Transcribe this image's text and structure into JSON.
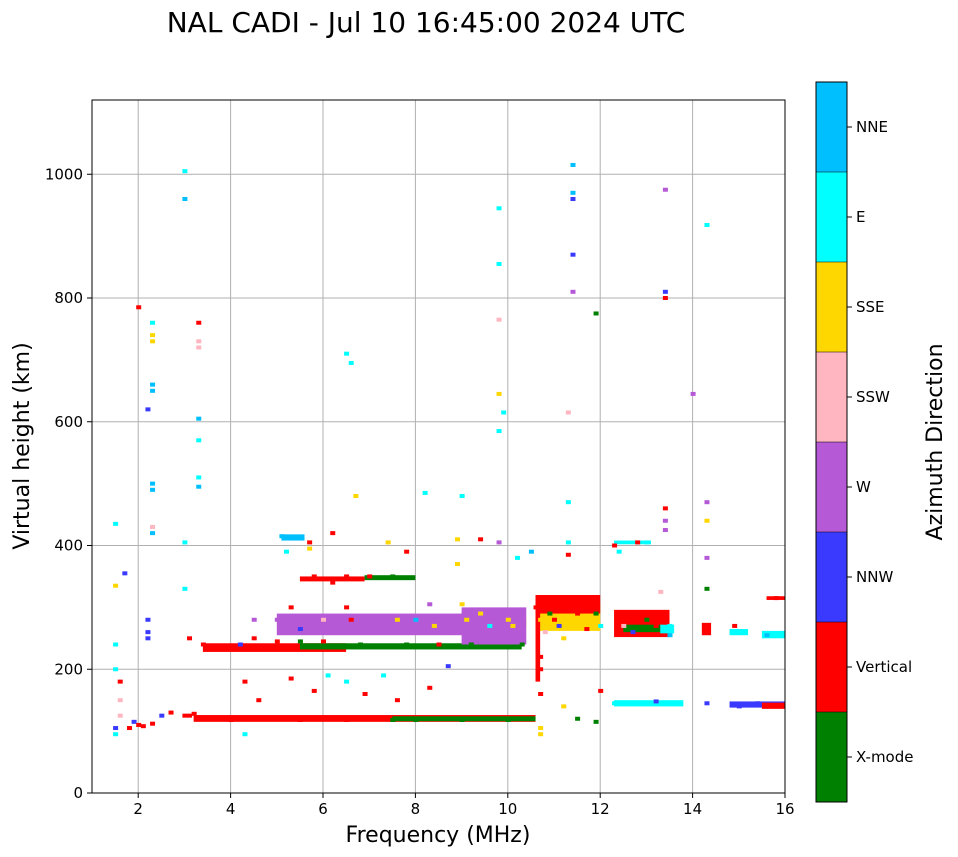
{
  "chart_data": {
    "type": "scatter",
    "title": "NAL CADI - Jul 10 16:45:00 2024 UTC",
    "xlabel": "Frequency (MHz)",
    "ylabel": "Virtual height (km)",
    "xlim": [
      1,
      16
    ],
    "ylim": [
      0,
      1120
    ],
    "xticks": [
      2,
      4,
      6,
      8,
      10,
      12,
      14,
      16
    ],
    "yticks": [
      0,
      200,
      400,
      600,
      800,
      1000
    ],
    "grid": true,
    "colorbar": {
      "label": "Azimuth Direction",
      "categories": [
        {
          "name": "X-mode",
          "color": "#008000"
        },
        {
          "name": "Vertical",
          "color": "#ff0000"
        },
        {
          "name": "NNW",
          "color": "#3a3aff"
        },
        {
          "name": "W",
          "color": "#b659d6"
        },
        {
          "name": "SSW",
          "color": "#ffb6c1"
        },
        {
          "name": "SSE",
          "color": "#ffd700"
        },
        {
          "name": "E",
          "color": "#00ffff"
        },
        {
          "name": "NNE",
          "color": "#00bfff"
        }
      ]
    },
    "points": [
      [
        1.5,
        95,
        "E"
      ],
      [
        1.5,
        105,
        "NNW"
      ],
      [
        1.6,
        125,
        "SSW"
      ],
      [
        1.6,
        150,
        "SSW"
      ],
      [
        1.6,
        180,
        "Vertical"
      ],
      [
        1.5,
        200,
        "E"
      ],
      [
        1.5,
        240,
        "E"
      ],
      [
        1.5,
        335,
        "SSE"
      ],
      [
        1.5,
        435,
        "E"
      ],
      [
        1.7,
        355,
        "NNW"
      ],
      [
        1.8,
        105,
        "Vertical"
      ],
      [
        1.9,
        115,
        "NNW"
      ],
      [
        2.0,
        110,
        "Vertical"
      ],
      [
        2.1,
        108,
        "Vertical"
      ],
      [
        2.3,
        112,
        "Vertical"
      ],
      [
        2.5,
        125,
        "NNW"
      ],
      [
        2.7,
        130,
        "Vertical"
      ],
      [
        3.0,
        125,
        "Vertical"
      ],
      [
        3.1,
        125,
        "Vertical"
      ],
      [
        3.2,
        128,
        "Vertical"
      ],
      [
        2.0,
        785,
        "Vertical"
      ],
      [
        2.3,
        760,
        "E"
      ],
      [
        2.3,
        740,
        "SSE"
      ],
      [
        2.3,
        730,
        "SSE"
      ],
      [
        2.3,
        660,
        "NNE"
      ],
      [
        2.3,
        650,
        "NNE"
      ],
      [
        2.2,
        620,
        "NNW"
      ],
      [
        2.3,
        500,
        "NNE"
      ],
      [
        2.3,
        490,
        "NNE"
      ],
      [
        2.3,
        430,
        "SSW"
      ],
      [
        2.3,
        420,
        "NNE"
      ],
      [
        2.2,
        280,
        "NNW"
      ],
      [
        2.2,
        260,
        "NNW"
      ],
      [
        2.2,
        250,
        "NNW"
      ],
      [
        3.0,
        1005,
        "E"
      ],
      [
        3.0,
        960,
        "NNE"
      ],
      [
        3.0,
        405,
        "E"
      ],
      [
        3.0,
        330,
        "E"
      ],
      [
        3.3,
        605,
        "NNE"
      ],
      [
        3.3,
        570,
        "E"
      ],
      [
        3.3,
        510,
        "E"
      ],
      [
        3.3,
        495,
        "NNE"
      ],
      [
        3.3,
        760,
        "Vertical"
      ],
      [
        3.3,
        730,
        "SSW"
      ],
      [
        3.3,
        720,
        "SSW"
      ],
      [
        3.1,
        250,
        "Vertical"
      ],
      [
        3.4,
        240,
        "Vertical"
      ],
      [
        3.7,
        235,
        "Vertical"
      ],
      [
        4.0,
        235,
        "Vertical"
      ],
      [
        4.2,
        240,
        "NNW"
      ],
      [
        4.5,
        280,
        "W"
      ],
      [
        4.5,
        250,
        "Vertical"
      ],
      [
        5.0,
        245,
        "Vertical"
      ],
      [
        5.0,
        280,
        "W"
      ],
      [
        5.1,
        415,
        "NNE"
      ],
      [
        5.2,
        390,
        "E"
      ],
      [
        5.3,
        300,
        "Vertical"
      ],
      [
        5.5,
        245,
        "X-mode"
      ],
      [
        5.5,
        265,
        "NNW"
      ],
      [
        5.7,
        395,
        "SSE"
      ],
      [
        5.8,
        350,
        "Vertical"
      ],
      [
        6.0,
        245,
        "Vertical"
      ],
      [
        6.0,
        280,
        "SSW"
      ],
      [
        6.2,
        340,
        "Vertical"
      ],
      [
        6.5,
        350,
        "Vertical"
      ],
      [
        6.5,
        300,
        "Vertical"
      ],
      [
        6.6,
        280,
        "Vertical"
      ],
      [
        6.8,
        240,
        "X-mode"
      ],
      [
        6.5,
        710,
        "E"
      ],
      [
        6.6,
        695,
        "E"
      ],
      [
        6.7,
        480,
        "SSE"
      ],
      [
        7.0,
        350,
        "Vertical"
      ],
      [
        7.3,
        270,
        "W"
      ],
      [
        7.4,
        405,
        "SSE"
      ],
      [
        7.5,
        350,
        "X-mode"
      ],
      [
        7.6,
        280,
        "SSE"
      ],
      [
        7.8,
        240,
        "X-mode"
      ],
      [
        8.0,
        280,
        "NNE"
      ],
      [
        8.2,
        485,
        "E"
      ],
      [
        8.3,
        305,
        "W"
      ],
      [
        8.4,
        270,
        "SSE"
      ],
      [
        8.5,
        240,
        "Vertical"
      ],
      [
        8.7,
        260,
        "W"
      ],
      [
        8.9,
        410,
        "SSE"
      ],
      [
        8.9,
        370,
        "SSE"
      ],
      [
        9.0,
        480,
        "E"
      ],
      [
        9.0,
        305,
        "SSE"
      ],
      [
        9.1,
        280,
        "SSE"
      ],
      [
        9.2,
        240,
        "X-mode"
      ],
      [
        9.4,
        290,
        "SSE"
      ],
      [
        9.6,
        270,
        "E"
      ],
      [
        9.8,
        945,
        "E"
      ],
      [
        9.8,
        855,
        "E"
      ],
      [
        9.8,
        765,
        "SSW"
      ],
      [
        9.8,
        645,
        "SSE"
      ],
      [
        9.9,
        615,
        "E"
      ],
      [
        9.8,
        585,
        "E"
      ],
      [
        9.8,
        405,
        "W"
      ],
      [
        10.0,
        280,
        "SSE"
      ],
      [
        10.1,
        270,
        "SSE"
      ],
      [
        10.2,
        380,
        "E"
      ],
      [
        10.3,
        240,
        "X-mode"
      ],
      [
        10.5,
        390,
        "NNE"
      ],
      [
        10.6,
        300,
        "Vertical"
      ],
      [
        10.7,
        280,
        "SSE"
      ],
      [
        10.7,
        220,
        "Vertical"
      ],
      [
        10.7,
        200,
        "Vertical"
      ],
      [
        10.7,
        160,
        "Vertical"
      ],
      [
        10.8,
        260,
        "SSW"
      ],
      [
        10.9,
        290,
        "X-mode"
      ],
      [
        11.0,
        280,
        "Vertical"
      ],
      [
        11.1,
        270,
        "NNW"
      ],
      [
        11.2,
        250,
        "SSE"
      ],
      [
        11.3,
        470,
        "E"
      ],
      [
        11.3,
        405,
        "E"
      ],
      [
        11.3,
        385,
        "Vertical"
      ],
      [
        11.4,
        1015,
        "NNE"
      ],
      [
        11.4,
        970,
        "NNE"
      ],
      [
        11.4,
        960,
        "NNW"
      ],
      [
        11.4,
        870,
        "NNW"
      ],
      [
        11.4,
        810,
        "W"
      ],
      [
        11.3,
        615,
        "SSW"
      ],
      [
        11.5,
        290,
        "Vertical"
      ],
      [
        11.7,
        265,
        "Vertical"
      ],
      [
        11.9,
        775,
        "X-mode"
      ],
      [
        11.9,
        290,
        "X-mode"
      ],
      [
        12.0,
        270,
        "E"
      ],
      [
        12.3,
        400,
        "Vertical"
      ],
      [
        12.4,
        390,
        "E"
      ],
      [
        12.5,
        285,
        "Vertical"
      ],
      [
        12.5,
        270,
        "SSW"
      ],
      [
        12.7,
        260,
        "NNW"
      ],
      [
        12.8,
        405,
        "Vertical"
      ],
      [
        13.0,
        405,
        "E"
      ],
      [
        13.0,
        280,
        "X-mode"
      ],
      [
        13.2,
        270,
        "Vertical"
      ],
      [
        13.3,
        325,
        "SSW"
      ],
      [
        13.4,
        975,
        "W"
      ],
      [
        13.4,
        810,
        "NNW"
      ],
      [
        13.4,
        800,
        "Vertical"
      ],
      [
        13.4,
        460,
        "Vertical"
      ],
      [
        13.4,
        440,
        "W"
      ],
      [
        13.4,
        425,
        "W"
      ],
      [
        13.5,
        270,
        "E"
      ],
      [
        13.5,
        255,
        "NNE"
      ],
      [
        14.0,
        645,
        "W"
      ],
      [
        14.3,
        918,
        "E"
      ],
      [
        14.3,
        470,
        "W"
      ],
      [
        14.3,
        440,
        "SSE"
      ],
      [
        14.3,
        380,
        "W"
      ],
      [
        14.3,
        330,
        "X-mode"
      ],
      [
        14.3,
        265,
        "Vertical"
      ],
      [
        14.9,
        270,
        "Vertical"
      ],
      [
        15.0,
        260,
        "E"
      ],
      [
        15.6,
        255,
        "NNE"
      ],
      [
        15.8,
        315,
        "Vertical"
      ],
      [
        4.0,
        118,
        "Vertical"
      ],
      [
        4.5,
        122,
        "Vertical"
      ],
      [
        5.0,
        120,
        "Vertical"
      ],
      [
        5.5,
        118,
        "Vertical"
      ],
      [
        6.0,
        120,
        "Vertical"
      ],
      [
        6.5,
        118,
        "Vertical"
      ],
      [
        7.0,
        120,
        "Vertical"
      ],
      [
        7.5,
        118,
        "X-mode"
      ],
      [
        8.0,
        118,
        "X-mode"
      ],
      [
        8.5,
        120,
        "X-mode"
      ],
      [
        9.0,
        118,
        "X-mode"
      ],
      [
        9.5,
        120,
        "X-mode"
      ],
      [
        10.0,
        118,
        "X-mode"
      ],
      [
        10.5,
        120,
        "X-mode"
      ],
      [
        10.7,
        105,
        "SSE"
      ],
      [
        10.7,
        95,
        "SSE"
      ],
      [
        11.2,
        140,
        "SSE"
      ],
      [
        11.5,
        120,
        "X-mode"
      ],
      [
        12.3,
        145,
        "E"
      ],
      [
        12.7,
        145,
        "E"
      ],
      [
        13.2,
        148,
        "NNW"
      ],
      [
        13.7,
        145,
        "E"
      ],
      [
        14.3,
        145,
        "NNW"
      ],
      [
        15.0,
        140,
        "NNW"
      ],
      [
        15.4,
        145,
        "NNW"
      ],
      [
        15.8,
        140,
        "Vertical"
      ],
      [
        4.3,
        180,
        "Vertical"
      ],
      [
        4.6,
        150,
        "Vertical"
      ],
      [
        5.3,
        185,
        "Vertical"
      ],
      [
        5.8,
        165,
        "Vertical"
      ],
      [
        6.1,
        190,
        "E"
      ],
      [
        6.5,
        180,
        "E"
      ],
      [
        6.9,
        160,
        "Vertical"
      ],
      [
        7.3,
        190,
        "E"
      ],
      [
        7.6,
        150,
        "Vertical"
      ],
      [
        8.3,
        170,
        "Vertical"
      ],
      [
        8.7,
        205,
        "NNW"
      ],
      [
        4.3,
        95,
        "E"
      ],
      [
        5.7,
        405,
        "Vertical"
      ],
      [
        6.2,
        420,
        "Vertical"
      ],
      [
        7.8,
        390,
        "Vertical"
      ],
      [
        9.4,
        410,
        "Vertical"
      ],
      [
        11.9,
        115,
        "X-mode"
      ],
      [
        12.0,
        165,
        "Vertical"
      ]
    ],
    "bands": [
      {
        "x0": 3.2,
        "x1": 10.6,
        "y0": 115,
        "y1": 126,
        "cat": "Vertical"
      },
      {
        "x0": 7.5,
        "x1": 10.6,
        "y0": 116,
        "y1": 124,
        "cat": "X-mode"
      },
      {
        "x0": 3.4,
        "x1": 6.5,
        "y0": 228,
        "y1": 242,
        "cat": "Vertical"
      },
      {
        "x0": 5.5,
        "x1": 10.3,
        "y0": 232,
        "y1": 242,
        "cat": "X-mode"
      },
      {
        "x0": 5.5,
        "x1": 6.9,
        "y0": 342,
        "y1": 350,
        "cat": "Vertical"
      },
      {
        "x0": 6.9,
        "x1": 8.0,
        "y0": 344,
        "y1": 352,
        "cat": "X-mode"
      },
      {
        "x0": 8.0,
        "x1": 10.4,
        "y0": 268,
        "y1": 282,
        "cat": "SSE"
      },
      {
        "x0": 10.6,
        "x1": 12.0,
        "y0": 262,
        "y1": 306,
        "cat": "SSE"
      },
      {
        "x0": 12.3,
        "x1": 13.5,
        "y0": 252,
        "y1": 296,
        "cat": "Vertical"
      },
      {
        "x0": 12.5,
        "x1": 13.3,
        "y0": 260,
        "y1": 272,
        "cat": "X-mode"
      },
      {
        "x0": 13.3,
        "x1": 13.6,
        "y0": 258,
        "y1": 272,
        "cat": "E"
      },
      {
        "x0": 14.2,
        "x1": 14.4,
        "y0": 255,
        "y1": 275,
        "cat": "Vertical"
      },
      {
        "x0": 14.8,
        "x1": 15.2,
        "y0": 255,
        "y1": 265,
        "cat": "E"
      },
      {
        "x0": 15.5,
        "x1": 16.0,
        "y0": 250,
        "y1": 262,
        "cat": "E"
      },
      {
        "x0": 15.6,
        "x1": 16.0,
        "y0": 312,
        "y1": 318,
        "cat": "Vertical"
      },
      {
        "x0": 12.3,
        "x1": 13.8,
        "y0": 140,
        "y1": 150,
        "cat": "E"
      },
      {
        "x0": 14.8,
        "x1": 16.0,
        "y0": 138,
        "y1": 148,
        "cat": "NNW"
      },
      {
        "x0": 15.5,
        "x1": 16.0,
        "y0": 136,
        "y1": 146,
        "cat": "Vertical"
      },
      {
        "x0": 5.1,
        "x1": 5.6,
        "y0": 408,
        "y1": 418,
        "cat": "NNE"
      },
      {
        "x0": 12.3,
        "x1": 13.1,
        "y0": 402,
        "y1": 408,
        "cat": "E"
      },
      {
        "x0": 10.6,
        "x1": 10.7,
        "y0": 180,
        "y1": 320,
        "cat": "Vertical"
      },
      {
        "x0": 5.0,
        "x1": 9.2,
        "y0": 255,
        "y1": 290,
        "cat": "W"
      },
      {
        "x0": 9.0,
        "x1": 10.4,
        "y0": 240,
        "y1": 300,
        "cat": "W"
      },
      {
        "x0": 10.6,
        "x1": 12.0,
        "y0": 290,
        "y1": 320,
        "cat": "Vertical"
      }
    ]
  }
}
